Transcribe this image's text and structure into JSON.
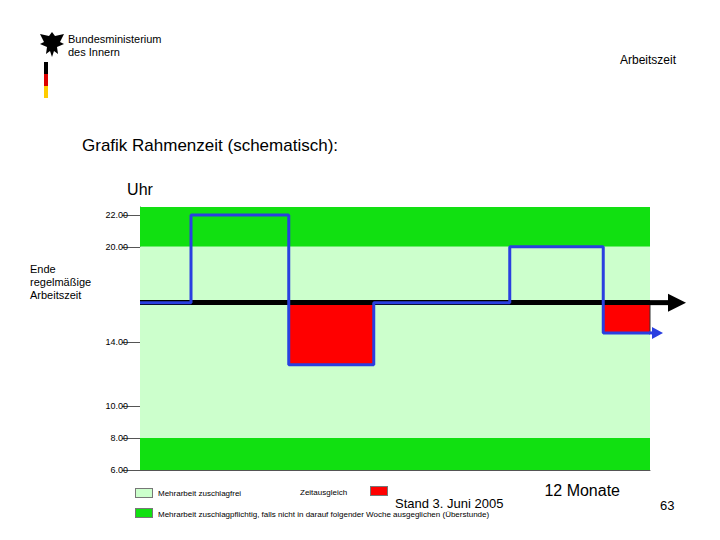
{
  "page": {
    "ministry": [
      "Bundesministerium",
      "des Innern"
    ],
    "section": "Arbeitszeit",
    "title": "Grafik Rahmenzeit (schematisch):",
    "date": "Stand 3. Juni 2005",
    "page_number": 63
  },
  "chart_data": {
    "type": "line",
    "y_label": "Uhr",
    "x_label": "12 Monate",
    "x": [
      0,
      1.2,
      3.5,
      5.5,
      8.7,
      10.9,
      12
    ],
    "values": [
      16.5,
      22,
      12.6,
      16.5,
      20,
      14.6,
      14.6
    ],
    "color": "#2a3fe0",
    "line_style": "solid",
    "xlim": [
      0,
      12
    ],
    "ylim": [
      6,
      22.5
    ],
    "yticks": [
      {
        "value": 6,
        "label": "6.00"
      },
      {
        "value": 8,
        "label": "8.00"
      },
      {
        "value": 10,
        "label": "10.00"
      },
      {
        "value": 14,
        "label": "14.00"
      },
      {
        "value": 20,
        "label": "20.00"
      },
      {
        "value": 22,
        "label": "22.00"
      }
    ],
    "grid": false,
    "tick_labels": "y",
    "reference_line": {
      "label": "Ende regelmäßige Arbeitszeit",
      "y": 16.5,
      "color": "#000000"
    },
    "bands": [
      {
        "name": "Mehrarbeit zuschlagpflichtig, falls nicht in darauf folgender Woche ausgeglichen (Überstunde)",
        "color": "#11e011",
        "ranges": [
          [
            6,
            8
          ],
          [
            20,
            22.5
          ]
        ]
      },
      {
        "name": "Mehrarbeit zuschlagfrei",
        "color": "#ccffcc",
        "ranges": [
          [
            8,
            20
          ]
        ]
      }
    ],
    "below_reference": {
      "name": "Zeitausgleich",
      "color": "#ff0000"
    }
  }
}
